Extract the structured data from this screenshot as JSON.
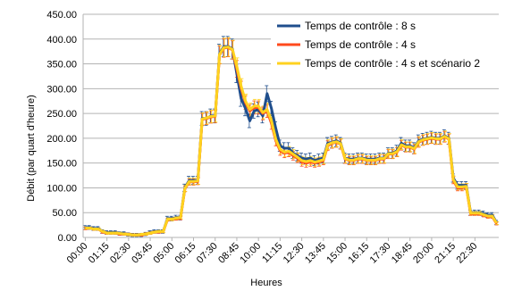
{
  "chart_data": {
    "type": "line",
    "title": "",
    "xlabel": "Heures",
    "ylabel": "Débit (par quart d'heure)",
    "ylim": [
      0,
      450
    ],
    "yticks": [
      "0.00",
      "50.00",
      "100.00",
      "150.00",
      "200.00",
      "250.00",
      "300.00",
      "350.00",
      "400.00",
      "450.00"
    ],
    "ytick_values": [
      0,
      50,
      100,
      150,
      200,
      250,
      300,
      350,
      400,
      450
    ],
    "x_labels": [
      "00:00",
      "01:15",
      "02:30",
      "03:45",
      "05:00",
      "06:15",
      "07:30",
      "08:45",
      "10:00",
      "11:15",
      "12:30",
      "13:45",
      "15:00",
      "16:15",
      "17:30",
      "18:45",
      "20:00",
      "21:15",
      "22:30"
    ],
    "x_label_indices": [
      0,
      5,
      10,
      15,
      20,
      25,
      30,
      35,
      40,
      45,
      50,
      55,
      60,
      65,
      70,
      75,
      80,
      85,
      90
    ],
    "x_count": 96,
    "grid": {
      "horizontal": true,
      "vertical": false
    },
    "legend_position": "top-right",
    "error_bars": true,
    "series": [
      {
        "name": "Temps de contrôle : 8 s",
        "color": "#1f4e8c",
        "values": [
          20,
          20,
          18,
          18,
          12,
          10,
          10,
          10,
          8,
          8,
          6,
          5,
          5,
          5,
          7,
          10,
          12,
          12,
          12,
          38,
          38,
          40,
          40,
          100,
          115,
          115,
          115,
          240,
          240,
          245,
          245,
          370,
          385,
          385,
          380,
          330,
          280,
          260,
          235,
          255,
          258,
          245,
          290,
          260,
          220,
          185,
          180,
          180,
          170,
          165,
          160,
          158,
          160,
          155,
          158,
          160,
          190,
          192,
          195,
          190,
          160,
          158,
          158,
          160,
          160,
          158,
          158,
          158,
          160,
          160,
          170,
          170,
          175,
          190,
          185,
          185,
          180,
          195,
          198,
          200,
          202,
          200,
          200,
          205,
          200,
          120,
          105,
          105,
          105,
          50,
          50,
          50,
          48,
          45,
          45,
          30
        ]
      },
      {
        "name": "Temps de contrôle : 4 s",
        "color": "#ff4a1c",
        "values": [
          18,
          19,
          17,
          17,
          11,
          9,
          9,
          9,
          7,
          7,
          6,
          5,
          5,
          5,
          7,
          9,
          11,
          11,
          12,
          36,
          37,
          38,
          39,
          98,
          112,
          112,
          113,
          238,
          240,
          243,
          244,
          368,
          382,
          383,
          378,
          340,
          300,
          272,
          255,
          262,
          262,
          250,
          255,
          230,
          195,
          175,
          170,
          172,
          165,
          160,
          152,
          150,
          152,
          150,
          152,
          155,
          185,
          190,
          192,
          188,
          158,
          155,
          155,
          158,
          158,
          155,
          155,
          155,
          158,
          158,
          168,
          168,
          172,
          186,
          182,
          182,
          178,
          192,
          196,
          198,
          200,
          198,
          198,
          203,
          198,
          115,
          100,
          100,
          102,
          48,
          48,
          48,
          45,
          42,
          42,
          28
        ]
      },
      {
        "name": "Temps de contrôle : 4 s et scénario 2",
        "color": "#ffd21f",
        "values": [
          19,
          19,
          17,
          17,
          12,
          9,
          9,
          9,
          8,
          7,
          6,
          5,
          5,
          6,
          7,
          9,
          11,
          12,
          12,
          37,
          37,
          39,
          40,
          99,
          113,
          113,
          114,
          239,
          241,
          244,
          245,
          369,
          383,
          384,
          379,
          345,
          305,
          275,
          258,
          265,
          265,
          252,
          258,
          235,
          198,
          178,
          172,
          174,
          168,
          162,
          155,
          153,
          155,
          152,
          154,
          157,
          187,
          191,
          193,
          189,
          159,
          156,
          156,
          159,
          159,
          156,
          156,
          156,
          159,
          159,
          169,
          169,
          173,
          187,
          183,
          183,
          179,
          193,
          197,
          199,
          201,
          199,
          199,
          204,
          199,
          117,
          102,
          102,
          103,
          49,
          49,
          49,
          46,
          43,
          43,
          29
        ]
      }
    ]
  }
}
